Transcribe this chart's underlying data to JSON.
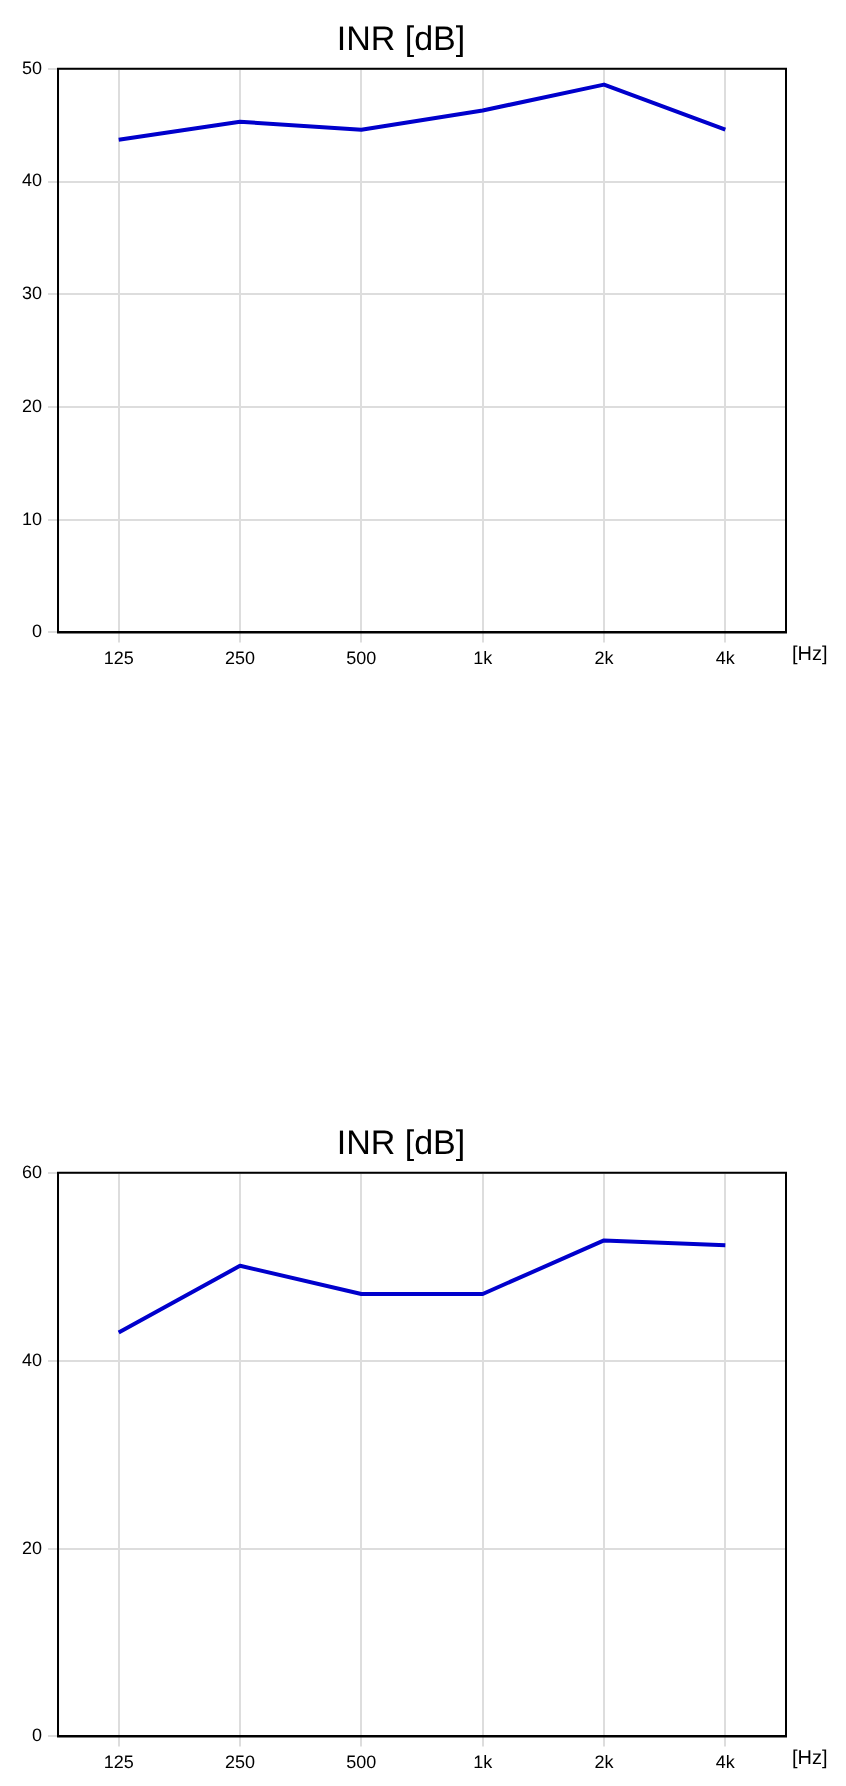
{
  "chart_data": [
    {
      "type": "line",
      "title": "INR [dB]",
      "xlabel": "[Hz]",
      "categories": [
        "125",
        "250",
        "500",
        "1k",
        "2k",
        "4k"
      ],
      "series": [
        {
          "color": "#0000cc",
          "values": [
            43.7,
            45.3,
            44.6,
            46.3,
            48.6,
            44.6
          ]
        }
      ],
      "ylim": [
        0,
        50
      ],
      "yticks": [
        0,
        10,
        20,
        30,
        40,
        50
      ],
      "grid": true,
      "legend": false,
      "marker": "none",
      "line_style": "solid"
    },
    {
      "type": "line",
      "title": "INR [dB]",
      "xlabel": "[Hz]",
      "categories": [
        "125",
        "250",
        "500",
        "1k",
        "2k",
        "4k"
      ],
      "series": [
        {
          "color": "#0000cc",
          "values": [
            43.0,
            50.1,
            47.1,
            47.1,
            52.8,
            52.3
          ]
        }
      ],
      "ylim": [
        0,
        60
      ],
      "yticks": [
        0,
        20,
        40,
        60
      ],
      "grid": true,
      "legend": false,
      "marker": "none",
      "line_style": "solid"
    }
  ]
}
